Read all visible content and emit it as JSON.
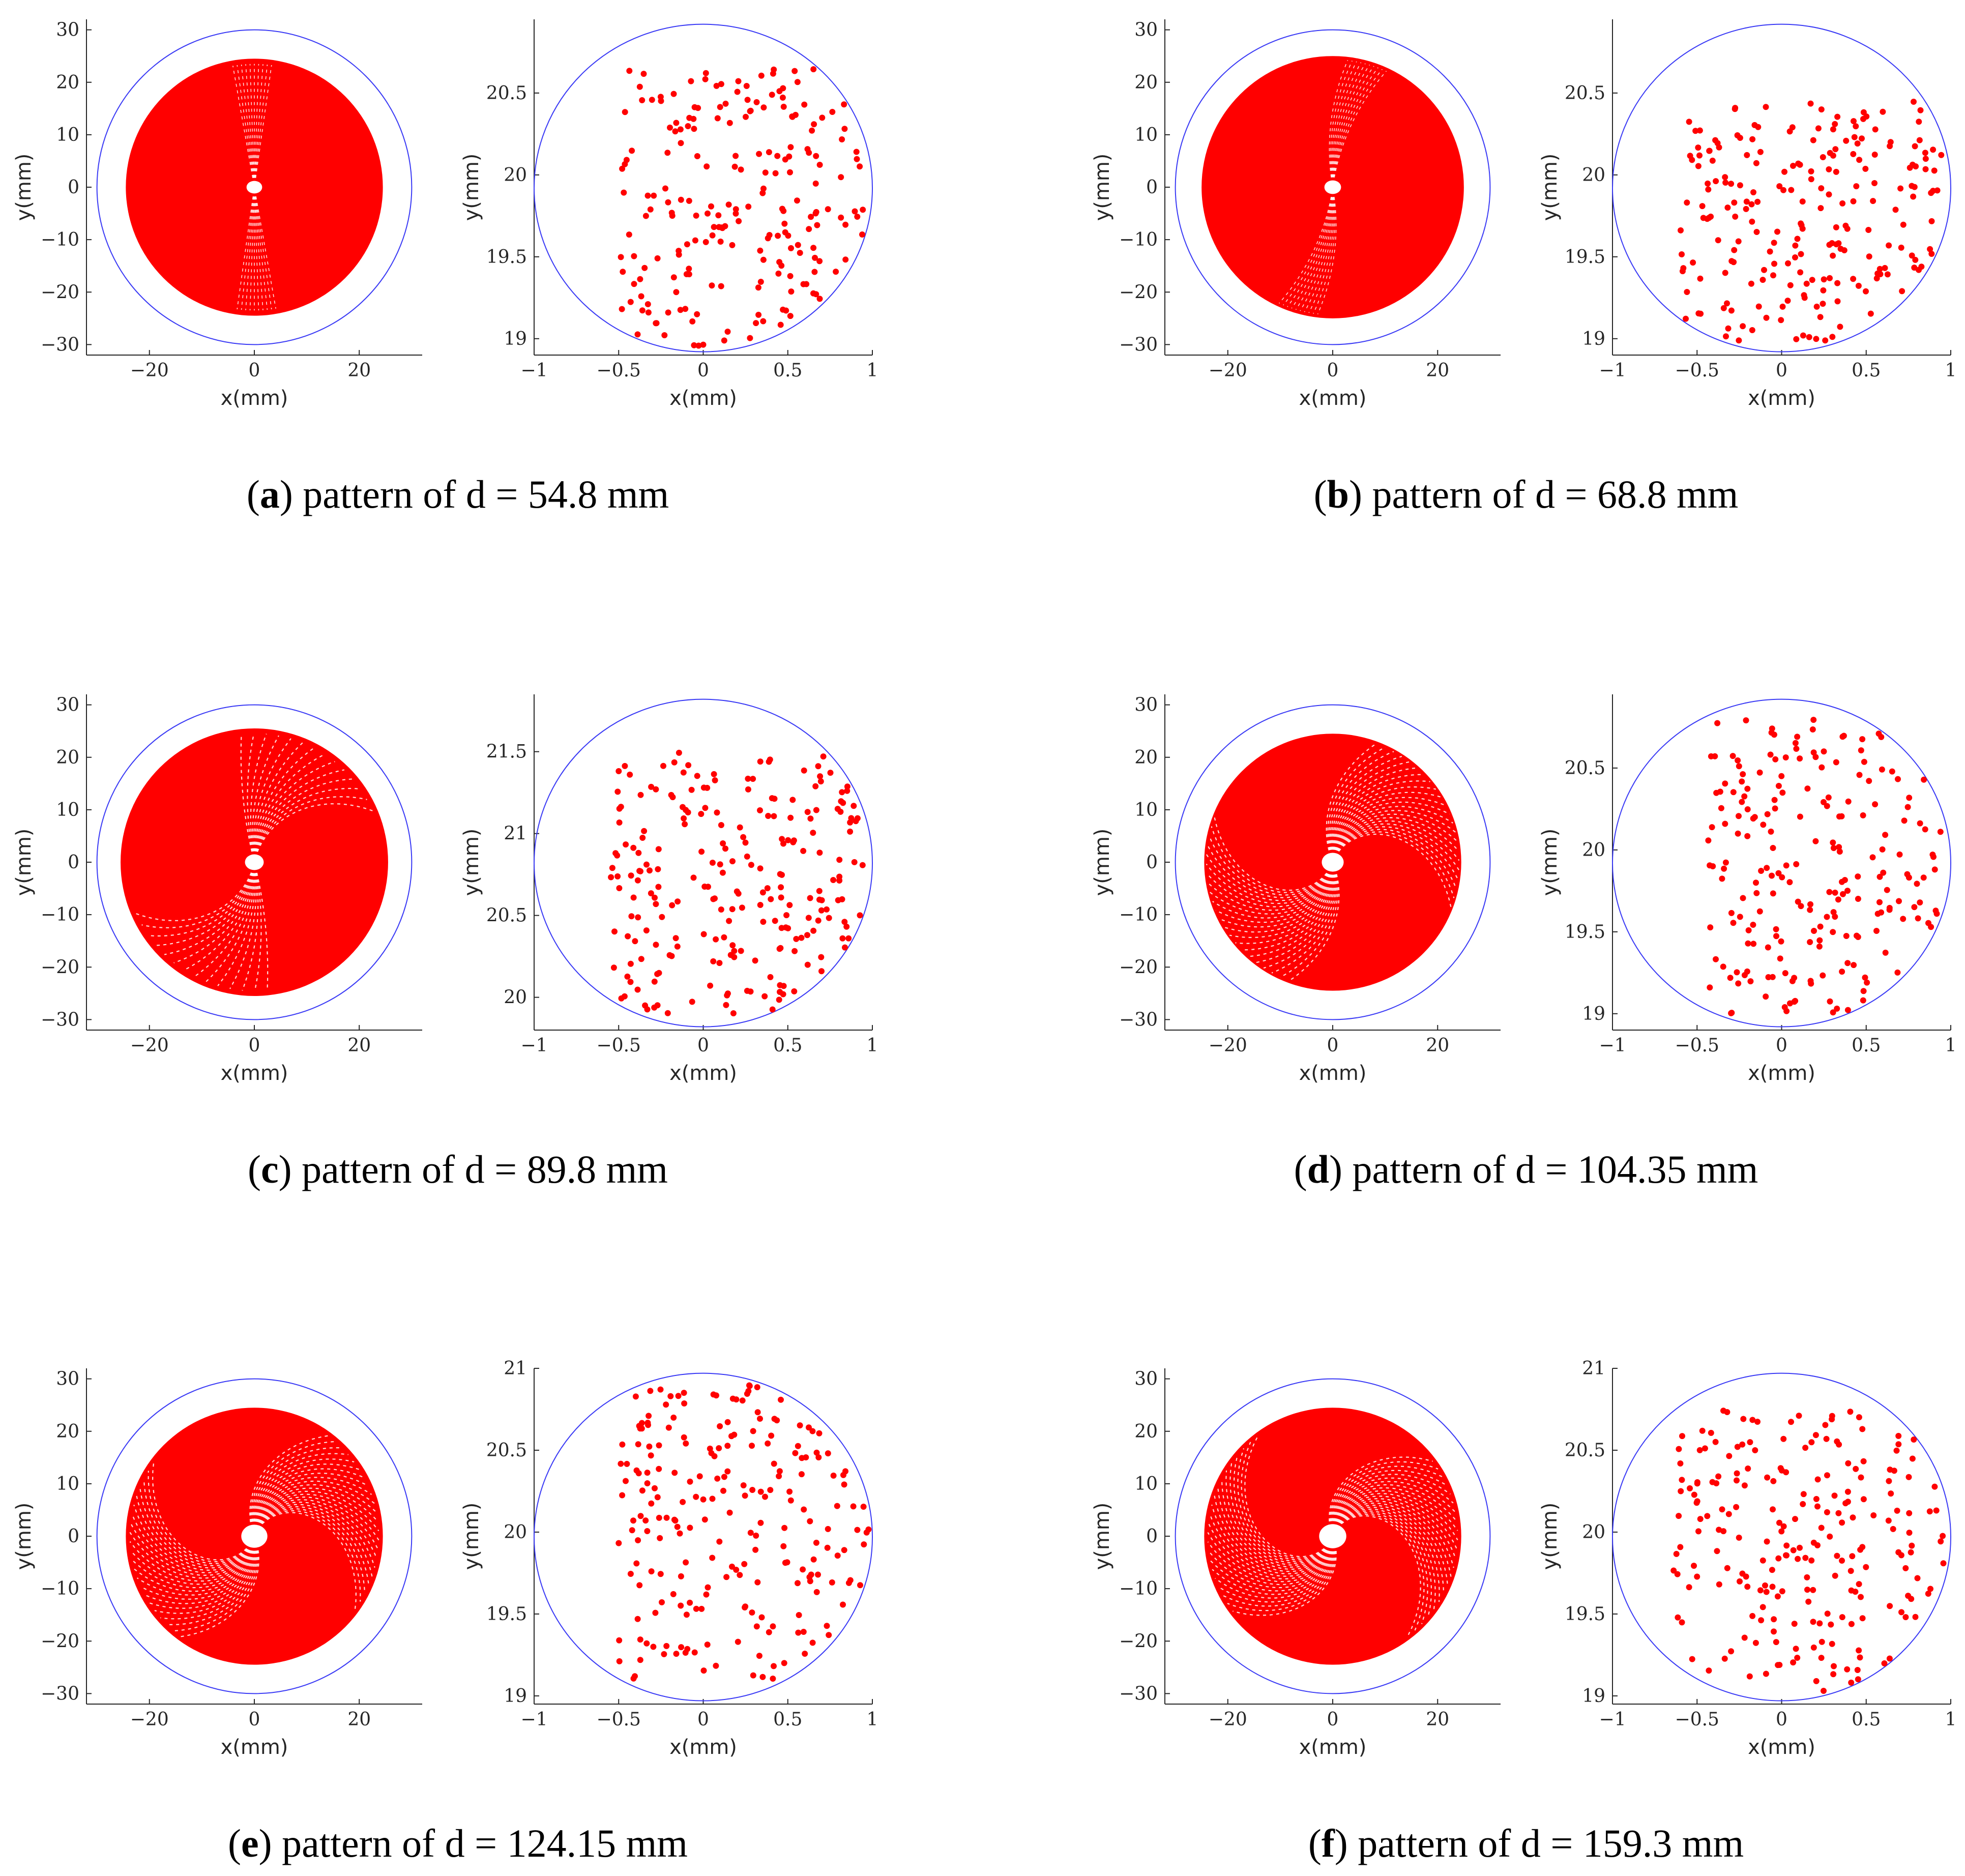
{
  "colors": {
    "points": "#ff0000",
    "aperture": "#3a3af5",
    "axes": "#262626",
    "background": "#ffffff"
  },
  "panels": [
    {
      "letter": "a",
      "caption_text": "pattern of d = 54.8 mm",
      "spiral": "weak",
      "twist": 0
    },
    {
      "letter": "b",
      "caption_text": "pattern of d = 68.8 mm",
      "spiral": "weak",
      "twist": 0.3
    },
    {
      "letter": "c",
      "caption_text": "pattern of d = 89.8 mm",
      "spiral": "medium",
      "twist": 0.6
    },
    {
      "letter": "d",
      "caption_text": "pattern of d = 104.35 mm",
      "spiral": "strong",
      "twist": 1.2
    },
    {
      "letter": "e",
      "caption_text": "pattern of d = 124.15 mm",
      "spiral": "strong",
      "twist": 1.5
    },
    {
      "letter": "f",
      "caption_text": "pattern of d = 159.3 mm",
      "spiral": "strong",
      "twist": 1.8
    }
  ],
  "chart_data": [
    {
      "panel": "a",
      "type": "scatter",
      "title": "",
      "subplot": "full",
      "xlabel": "x(mm)",
      "ylabel": "y(mm)",
      "xlim": [
        -32,
        32
      ],
      "ylim": [
        -32,
        32
      ],
      "xticks": [
        -20,
        0,
        20
      ],
      "yticks": [
        -30,
        -20,
        -10,
        0,
        10,
        20,
        30
      ],
      "xtick_labels": [
        "−20",
        "0",
        "20"
      ],
      "ytick_labels": [
        "−30",
        "−20",
        "−10",
        "0",
        "10",
        "20",
        "30"
      ],
      "aperture_radius": 30,
      "pattern_radius": 24.5,
      "center_hole_radius": 1.2,
      "grid": false
    },
    {
      "panel": "a",
      "type": "scatter",
      "title": "",
      "subplot": "zoom",
      "xlabel": "x(mm)",
      "ylabel": "y(mm)",
      "xlim": [
        -1,
        1
      ],
      "ylim": [
        18.9,
        20.95
      ],
      "xticks": [
        -1,
        -0.5,
        0,
        0.5,
        1
      ],
      "yticks": [
        19,
        19.5,
        20,
        20.5
      ],
      "xtick_labels": [
        "−1",
        "−0.5",
        "0",
        "0.5",
        "1"
      ],
      "ytick_labels": [
        "19",
        "19.5",
        "20",
        "20.5"
      ],
      "aperture_center": [
        0,
        19.92
      ],
      "aperture_radius": 1,
      "point_region": {
        "x": [
          -0.5,
          0.95
        ],
        "y": [
          18.95,
          20.65
        ],
        "count": 210
      },
      "grid": false
    },
    {
      "panel": "b",
      "type": "scatter",
      "title": "",
      "subplot": "full",
      "xlabel": "x(mm)",
      "ylabel": "y(mm)",
      "xlim": [
        -32,
        32
      ],
      "ylim": [
        -32,
        32
      ],
      "xticks": [
        -20,
        0,
        20
      ],
      "yticks": [
        -30,
        -20,
        -10,
        0,
        10,
        20,
        30
      ],
      "xtick_labels": [
        "−20",
        "0",
        "20"
      ],
      "ytick_labels": [
        "−30",
        "−20",
        "−10",
        "0",
        "10",
        "20",
        "30"
      ],
      "aperture_radius": 30,
      "pattern_radius": 25,
      "center_hole_radius": 1.3,
      "grid": false
    },
    {
      "panel": "b",
      "type": "scatter",
      "title": "",
      "subplot": "zoom",
      "xlabel": "x(mm)",
      "ylabel": "y(mm)",
      "xlim": [
        -1,
        1
      ],
      "ylim": [
        18.9,
        20.95
      ],
      "xticks": [
        -1,
        -0.5,
        0,
        0.5,
        1
      ],
      "yticks": [
        19,
        19.5,
        20,
        20.5
      ],
      "xtick_labels": [
        "−1",
        "−0.5",
        "0",
        "0.5",
        "1"
      ],
      "ytick_labels": [
        "19",
        "19.5",
        "20",
        "20.5"
      ],
      "aperture_center": [
        0,
        19.92
      ],
      "aperture_radius": 1,
      "point_region": {
        "x": [
          -0.6,
          0.95
        ],
        "y": [
          18.95,
          20.45
        ],
        "count": 220
      },
      "grid": false
    },
    {
      "panel": "c",
      "type": "scatter",
      "title": "",
      "subplot": "full",
      "xlabel": "x(mm)",
      "ylabel": "y(mm)",
      "xlim": [
        -32,
        32
      ],
      "ylim": [
        -32,
        32
      ],
      "xticks": [
        -20,
        0,
        20
      ],
      "yticks": [
        -30,
        -20,
        -10,
        0,
        10,
        20,
        30
      ],
      "xtick_labels": [
        "−20",
        "0",
        "20"
      ],
      "ytick_labels": [
        "−30",
        "−20",
        "−10",
        "0",
        "10",
        "20",
        "30"
      ],
      "aperture_radius": 30,
      "pattern_radius": 25.5,
      "center_hole_radius": 1.5,
      "grid": false
    },
    {
      "panel": "c",
      "type": "scatter",
      "title": "",
      "subplot": "zoom",
      "xlabel": "x(mm)",
      "ylabel": "y(mm)",
      "xlim": [
        -1,
        1
      ],
      "ylim": [
        19.8,
        21.85
      ],
      "xticks": [
        -1,
        -0.5,
        0,
        0.5,
        1
      ],
      "yticks": [
        20,
        20.5,
        21,
        21.5
      ],
      "xtick_labels": [
        "−1",
        "−0.5",
        "0",
        "0.5",
        "1"
      ],
      "ytick_labels": [
        "20",
        "20.5",
        "21",
        "21.5"
      ],
      "aperture_center": [
        0,
        20.82
      ],
      "aperture_radius": 1,
      "point_region": {
        "x": [
          -0.55,
          0.95
        ],
        "y": [
          19.9,
          21.5
        ],
        "count": 230
      },
      "grid": false
    },
    {
      "panel": "d",
      "type": "scatter",
      "title": "",
      "subplot": "full",
      "xlabel": "x(mm)",
      "ylabel": "y(mm)",
      "xlim": [
        -32,
        32
      ],
      "ylim": [
        -32,
        32
      ],
      "xticks": [
        -20,
        0,
        20
      ],
      "yticks": [
        -30,
        -20,
        -10,
        0,
        10,
        20,
        30
      ],
      "xtick_labels": [
        "−20",
        "0",
        "20"
      ],
      "ytick_labels": [
        "−30",
        "−20",
        "−10",
        "0",
        "10",
        "20",
        "30"
      ],
      "aperture_radius": 30,
      "pattern_radius": 24.5,
      "center_hole_radius": 1.8,
      "grid": false
    },
    {
      "panel": "d",
      "type": "scatter",
      "title": "",
      "subplot": "zoom",
      "xlabel": "x(mm)",
      "ylabel": "y(mm)",
      "xlim": [
        -1,
        1
      ],
      "ylim": [
        18.9,
        20.95
      ],
      "xticks": [
        -1,
        -0.5,
        0,
        0.5,
        1
      ],
      "yticks": [
        19,
        19.5,
        20,
        20.5
      ],
      "xtick_labels": [
        "−1",
        "−0.5",
        "0",
        "0.5",
        "1"
      ],
      "ytick_labels": [
        "19",
        "19.5",
        "20",
        "20.5"
      ],
      "aperture_center": [
        0,
        19.92
      ],
      "aperture_radius": 1,
      "point_region": {
        "x": [
          -0.45,
          0.98
        ],
        "y": [
          19.0,
          20.8
        ],
        "count": 210
      },
      "grid": false
    },
    {
      "panel": "e",
      "type": "scatter",
      "title": "",
      "subplot": "full",
      "xlabel": "x(mm)",
      "ylabel": "y(mm)",
      "xlim": [
        -32,
        32
      ],
      "ylim": [
        -32,
        32
      ],
      "xticks": [
        -20,
        0,
        20
      ],
      "yticks": [
        -30,
        -20,
        -10,
        0,
        10,
        20,
        30
      ],
      "xtick_labels": [
        "−20",
        "0",
        "20"
      ],
      "ytick_labels": [
        "−30",
        "−20",
        "−10",
        "0",
        "10",
        "20",
        "30"
      ],
      "aperture_radius": 30,
      "pattern_radius": 24.5,
      "center_hole_radius": 2.2,
      "grid": false
    },
    {
      "panel": "e",
      "type": "scatter",
      "title": "",
      "subplot": "zoom",
      "xlabel": "x(mm)",
      "ylabel": "y(mm)",
      "xlim": [
        -1,
        1
      ],
      "ylim": [
        18.95,
        21.0
      ],
      "xticks": [
        -1,
        -0.5,
        0,
        0.5,
        1
      ],
      "yticks": [
        19,
        19.5,
        20,
        20.5,
        21
      ],
      "xtick_labels": [
        "−1",
        "−0.5",
        "0",
        "0.5",
        "1"
      ],
      "ytick_labels": [
        "19",
        "19.5",
        "20",
        "20.5",
        "21"
      ],
      "aperture_center": [
        0,
        19.97
      ],
      "aperture_radius": 1,
      "point_region": {
        "x": [
          -0.5,
          1.0
        ],
        "y": [
          19.1,
          20.9
        ],
        "count": 220
      },
      "grid": false
    },
    {
      "panel": "f",
      "type": "scatter",
      "title": "",
      "subplot": "full",
      "xlabel": "x(mm)",
      "ylabel": "y(mm)",
      "xlim": [
        -32,
        32
      ],
      "ylim": [
        -32,
        32
      ],
      "xticks": [
        -20,
        0,
        20
      ],
      "yticks": [
        -30,
        -20,
        -10,
        0,
        10,
        20,
        30
      ],
      "xtick_labels": [
        "−20",
        "0",
        "20"
      ],
      "ytick_labels": [
        "−30",
        "−20",
        "−10",
        "0",
        "10",
        "20",
        "30"
      ],
      "aperture_radius": 30,
      "pattern_radius": 24.5,
      "center_hole_radius": 2.3,
      "grid": false
    },
    {
      "panel": "f",
      "type": "scatter",
      "title": "",
      "subplot": "zoom",
      "xlabel": "x(mm)",
      "ylabel": "y(mm)",
      "xlim": [
        -1,
        1
      ],
      "ylim": [
        18.95,
        21.0
      ],
      "xticks": [
        -1,
        -0.5,
        0,
        0.5,
        1
      ],
      "yticks": [
        19,
        19.5,
        20,
        20.5,
        21
      ],
      "xtick_labels": [
        "−1",
        "−0.5",
        "0",
        "0.5",
        "1"
      ],
      "ytick_labels": [
        "19",
        "19.5",
        "20",
        "20.5",
        "21"
      ],
      "aperture_center": [
        0,
        19.97
      ],
      "aperture_radius": 1,
      "point_region": {
        "x": [
          -0.65,
          1.0
        ],
        "y": [
          19.0,
          20.75
        ],
        "count": 220
      },
      "grid": false
    }
  ]
}
